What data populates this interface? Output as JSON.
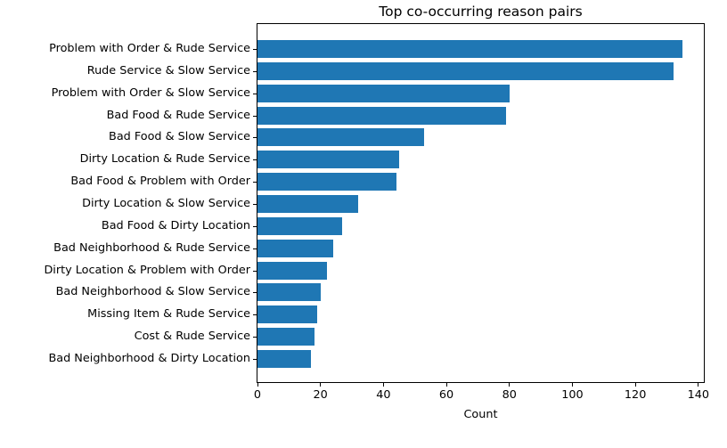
{
  "figure": {
    "background": "#ffffff",
    "text_color": "#000000"
  },
  "chart_data": {
    "type": "bar",
    "orientation": "horizontal",
    "title": "Top co-occurring reason pairs",
    "xlabel": "Count",
    "ylabel": "",
    "categories": [
      "Problem with Order & Rude Service",
      "Rude Service & Slow Service",
      "Problem with Order & Slow Service",
      "Bad Food & Rude Service",
      "Bad Food & Slow Service",
      "Dirty Location & Rude Service",
      "Bad Food & Problem with Order",
      "Dirty Location & Slow Service",
      "Bad Food & Dirty Location",
      "Bad Neighborhood & Rude Service",
      "Dirty Location & Problem with Order",
      "Bad Neighborhood & Slow Service",
      "Missing Item & Rude Service",
      "Cost & Rude Service",
      "Bad Neighborhood & Dirty Location"
    ],
    "values": [
      135,
      132,
      80,
      79,
      53,
      45,
      44,
      32,
      27,
      24,
      22,
      20,
      19,
      18,
      17
    ],
    "x_ticks": [
      0,
      20,
      40,
      60,
      80,
      100,
      120,
      140
    ],
    "xlim": [
      0,
      141.75
    ],
    "bar_color": "#1f77b4",
    "grid": false,
    "legend": false
  }
}
